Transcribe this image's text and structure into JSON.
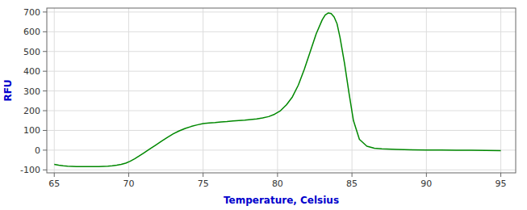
{
  "chart_data": {
    "type": "line",
    "xlabel": "Temperature, Celsius",
    "ylabel": "RFU",
    "color": "#008800",
    "xlim": [
      64.5,
      96
    ],
    "ylim": [
      -115,
      720
    ],
    "xticks": [
      65,
      70,
      75,
      80,
      85,
      90,
      95
    ],
    "yticks": [
      -100,
      0,
      100,
      200,
      300,
      400,
      500,
      600,
      700
    ],
    "grid": true,
    "x": [
      65.0,
      65.3,
      65.6,
      65.9,
      66.2,
      66.5,
      66.8,
      67.1,
      67.4,
      67.7,
      68.0,
      68.3,
      68.6,
      68.9,
      69.2,
      69.5,
      69.8,
      70.1,
      70.4,
      70.7,
      71.0,
      71.4,
      71.8,
      72.2,
      72.6,
      73.0,
      73.4,
      73.8,
      74.2,
      74.6,
      75.0,
      75.4,
      75.8,
      76.2,
      76.6,
      77.0,
      77.4,
      77.8,
      78.2,
      78.6,
      79.0,
      79.4,
      79.8,
      80.2,
      80.6,
      81.0,
      81.4,
      81.8,
      82.2,
      82.6,
      83.0,
      83.2,
      83.4,
      83.6,
      83.8,
      84.0,
      84.2,
      84.5,
      84.8,
      85.1,
      85.5,
      86.0,
      86.5,
      87.0,
      88.0,
      89.0,
      90.0,
      91.0,
      92.0,
      93.0,
      94.0,
      95.0
    ],
    "values": [
      -72,
      -76,
      -79,
      -81,
      -82,
      -83,
      -83,
      -83,
      -83,
      -83,
      -83,
      -82,
      -81,
      -79,
      -76,
      -72,
      -66,
      -56,
      -44,
      -30,
      -15,
      5,
      25,
      45,
      65,
      83,
      98,
      110,
      120,
      128,
      135,
      138,
      140,
      143,
      145,
      148,
      150,
      152,
      155,
      158,
      163,
      170,
      182,
      200,
      230,
      270,
      330,
      410,
      500,
      590,
      660,
      685,
      695,
      692,
      675,
      640,
      570,
      440,
      290,
      150,
      55,
      20,
      10,
      7,
      4,
      2,
      1,
      1,
      0,
      0,
      -1,
      -2
    ]
  }
}
